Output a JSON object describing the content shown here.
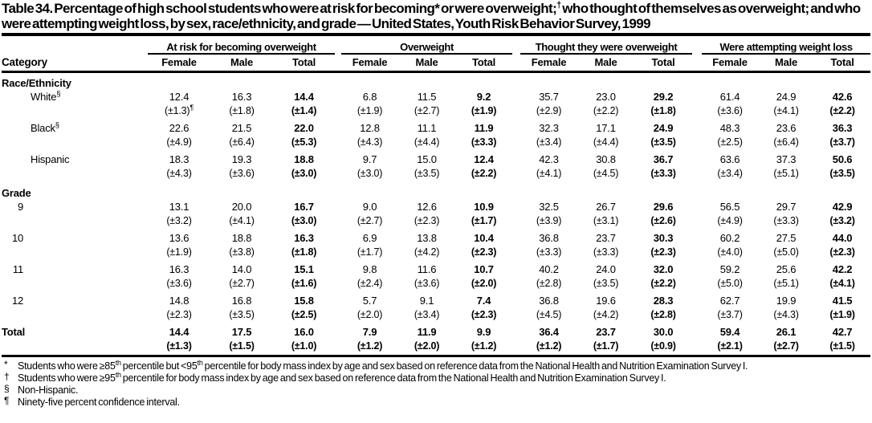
{
  "colors": {
    "text": "#000000",
    "background": "#ffffff"
  },
  "title": {
    "part1": "Table 34. Percentage of high school students who were at risk for becoming* or were overweight;",
    "dagger": "†",
    "part2": " who thought of themselves as overweight; and who were attempting weight loss, by sex, race/ethnicity, and grade — United States, Youth Risk Behavior Survey, 1999"
  },
  "table": {
    "category_header": "Category",
    "groups": [
      {
        "label": "At risk for becoming overweight",
        "columns": [
          "Female",
          "Male",
          "Total"
        ]
      },
      {
        "label": "Overweight",
        "columns": [
          "Female",
          "Male",
          "Total"
        ]
      },
      {
        "label": "Thought they were overweight",
        "columns": [
          "Female",
          "Male",
          "Total"
        ]
      },
      {
        "label": "Were attempting weight loss",
        "columns": [
          "Female",
          "Male",
          "Total"
        ]
      }
    ],
    "sections": [
      {
        "heading": "Race/Ethnicity",
        "rows": [
          {
            "label": "White",
            "label_sup": "§",
            "indent": "text",
            "values": [
              "12.4",
              "16.3",
              "14.4",
              "6.8",
              "11.5",
              "9.2",
              "35.7",
              "23.0",
              "29.2",
              "61.4",
              "24.9",
              "42.6"
            ],
            "ci": [
              "(±1.3)",
              "(±1.8)",
              "(±1.4)",
              "(±1.9)",
              "(±2.7)",
              "(±1.9)",
              "(±2.9)",
              "(±2.2)",
              "(±1.8)",
              "(±3.6)",
              "(±4.1)",
              "(±2.2)"
            ],
            "ci_sup": {
              "index": 0,
              "text": "¶"
            }
          },
          {
            "label": "Black",
            "label_sup": "§",
            "indent": "text",
            "values": [
              "22.6",
              "21.5",
              "22.0",
              "12.8",
              "11.1",
              "11.9",
              "32.3",
              "17.1",
              "24.9",
              "48.3",
              "23.6",
              "36.3"
            ],
            "ci": [
              "(±4.9)",
              "(±6.4)",
              "(±5.3)",
              "(±4.3)",
              "(±4.4)",
              "(±3.3)",
              "(±3.4)",
              "(±4.4)",
              "(±3.5)",
              "(±2.5)",
              "(±6.4)",
              "(±3.7)"
            ]
          },
          {
            "label": "Hispanic",
            "indent": "text",
            "values": [
              "18.3",
              "19.3",
              "18.8",
              "9.7",
              "15.0",
              "12.4",
              "42.3",
              "30.8",
              "36.7",
              "63.6",
              "37.3",
              "50.6"
            ],
            "ci": [
              "(±4.3)",
              "(±3.6)",
              "(±3.0)",
              "(±3.0)",
              "(±3.5)",
              "(±2.2)",
              "(±4.1)",
              "(±4.5)",
              "(±3.3)",
              "(±3.4)",
              "(±5.1)",
              "(±3.5)"
            ]
          }
        ]
      },
      {
        "heading": "Grade",
        "rows": [
          {
            "label": "9",
            "indent": "number",
            "values": [
              "13.1",
              "20.0",
              "16.7",
              "9.0",
              "12.6",
              "10.9",
              "32.5",
              "26.7",
              "29.6",
              "56.5",
              "29.7",
              "42.9"
            ],
            "ci": [
              "(±3.2)",
              "(±4.1)",
              "(±3.0)",
              "(±2.7)",
              "(±2.3)",
              "(±1.7)",
              "(±3.9)",
              "(±3.1)",
              "(±2.6)",
              "(±4.9)",
              "(±3.3)",
              "(±3.2)"
            ]
          },
          {
            "label": "10",
            "indent": "number",
            "values": [
              "13.6",
              "18.8",
              "16.3",
              "6.9",
              "13.8",
              "10.4",
              "36.8",
              "23.7",
              "30.3",
              "60.2",
              "27.5",
              "44.0"
            ],
            "ci": [
              "(±1.9)",
              "(±3.8)",
              "(±1.8)",
              "(±1.7)",
              "(±4.2)",
              "(±2.3)",
              "(±3.3)",
              "(±3.3)",
              "(±2.3)",
              "(±4.0)",
              "(±5.0)",
              "(±2.3)"
            ]
          },
          {
            "label": "11",
            "indent": "number",
            "values": [
              "16.3",
              "14.0",
              "15.1",
              "9.8",
              "11.6",
              "10.7",
              "40.2",
              "24.0",
              "32.0",
              "59.2",
              "25.6",
              "42.2"
            ],
            "ci": [
              "(±3.6)",
              "(±2.7)",
              "(±1.6)",
              "(±2.4)",
              "(±3.6)",
              "(±2.0)",
              "(±2.8)",
              "(±3.5)",
              "(±2.2)",
              "(±5.0)",
              "(±5.1)",
              "(±4.1)"
            ]
          },
          {
            "label": "12",
            "indent": "number",
            "values": [
              "14.8",
              "16.8",
              "15.8",
              "5.7",
              "9.1",
              "7.4",
              "36.8",
              "19.6",
              "28.3",
              "62.7",
              "19.9",
              "41.5"
            ],
            "ci": [
              "(±2.3)",
              "(±3.5)",
              "(±2.5)",
              "(±2.0)",
              "(±3.4)",
              "(±2.3)",
              "(±4.5)",
              "(±4.2)",
              "(±2.8)",
              "(±3.7)",
              "(±4.3)",
              "(±1.9)"
            ]
          }
        ]
      }
    ],
    "total_row": {
      "label": "Total",
      "values": [
        "14.4",
        "17.5",
        "16.0",
        "7.9",
        "11.9",
        "9.9",
        "36.4",
        "23.7",
        "30.0",
        "59.4",
        "26.1",
        "42.7"
      ],
      "ci": [
        "(±1.3)",
        "(±1.5)",
        "(±1.0)",
        "(±1.2)",
        "(±2.0)",
        "(±1.2)",
        "(±1.2)",
        "(±1.7)",
        "(±0.9)",
        "(±2.1)",
        "(±2.7)",
        "(±1.5)"
      ]
    }
  },
  "footnotes": [
    {
      "marker": "*",
      "parts": [
        {
          "text": "Students who were ≥85"
        },
        {
          "text": "th",
          "sup": true
        },
        {
          "text": " percentile but <95"
        },
        {
          "text": "th",
          "sup": true
        },
        {
          "text": " percentile for body mass index by age and sex based on reference data from the National Health and Nutrition Examination Survey I."
        }
      ]
    },
    {
      "marker": "†",
      "parts": [
        {
          "text": "Students who were ≥95"
        },
        {
          "text": "th",
          "sup": true
        },
        {
          "text": " percentile for body mass index by age and sex based on reference data from the National Health and Nutrition Examination Survey I."
        }
      ]
    },
    {
      "marker": "§",
      "parts": [
        {
          "text": "Non-Hispanic."
        }
      ]
    },
    {
      "marker": "¶",
      "parts": [
        {
          "text": "Ninety-five percent confidence interval."
        }
      ]
    }
  ]
}
